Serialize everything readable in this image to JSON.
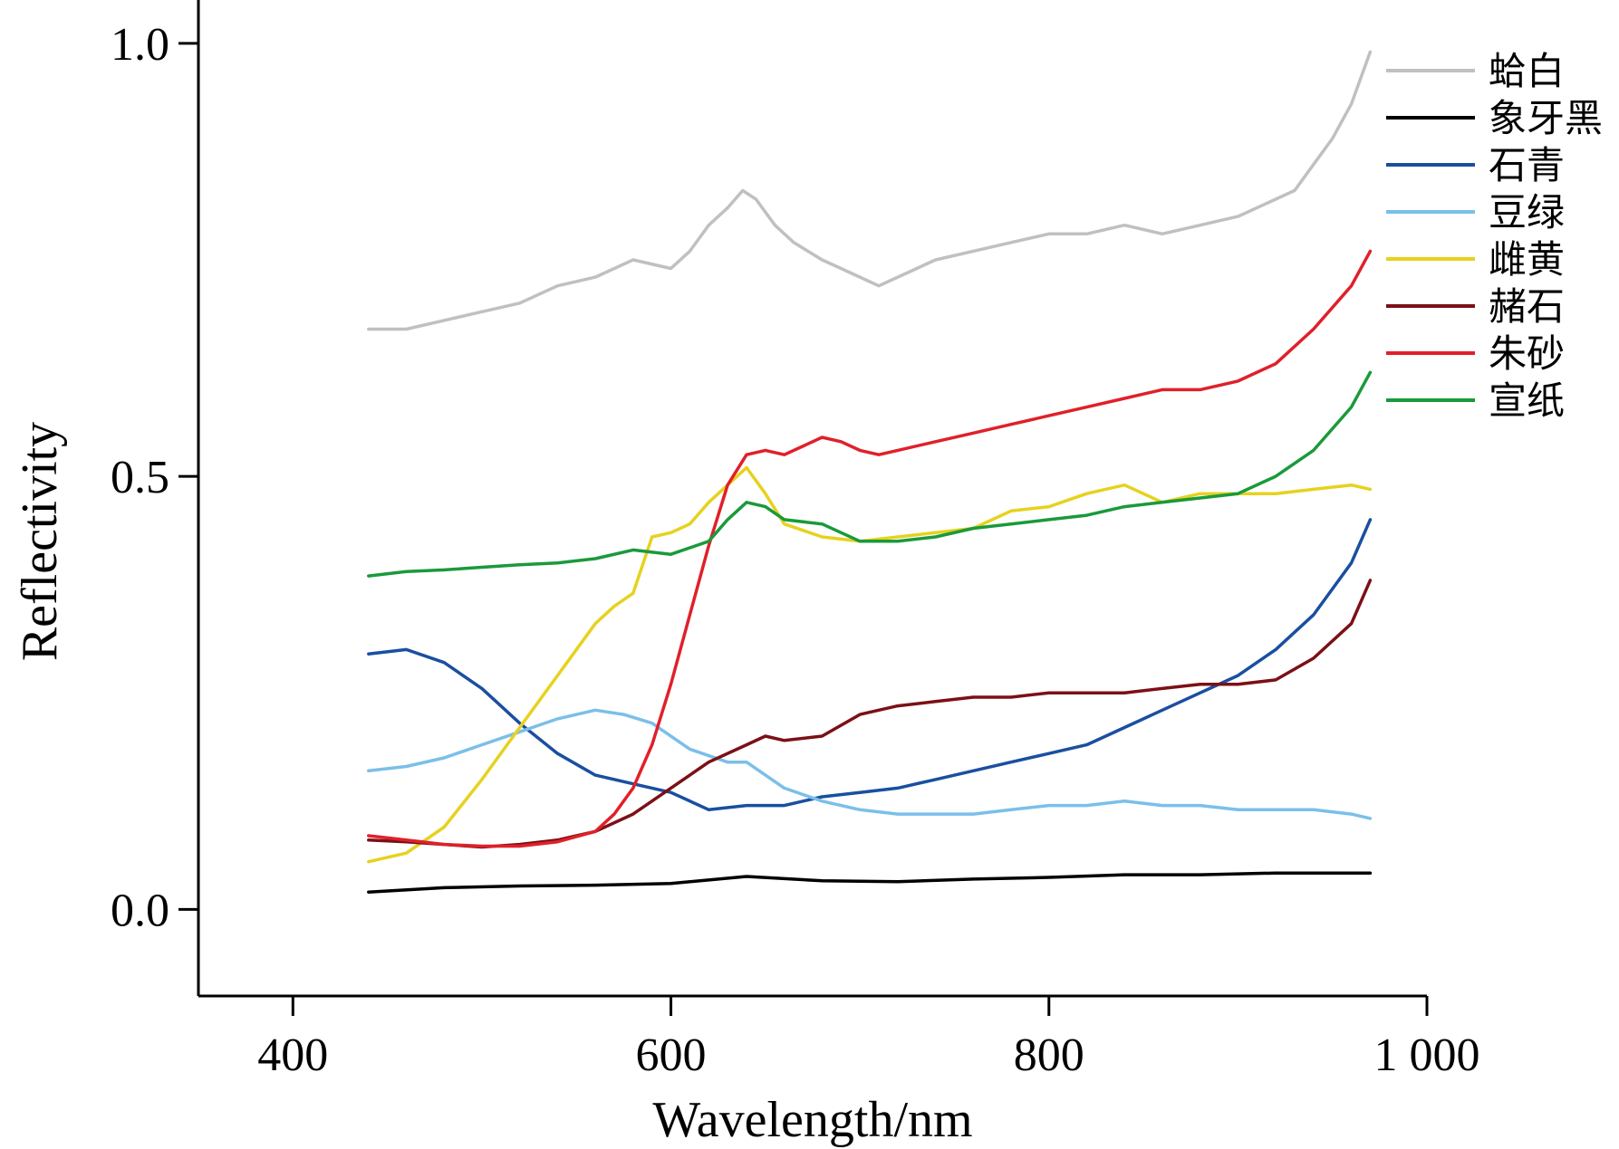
{
  "chart_data": {
    "type": "line",
    "xlabel": "Wavelength/nm",
    "ylabel": "Reflectivity",
    "xlim": [
      350,
      1000
    ],
    "ylim": [
      -0.1,
      1.05
    ],
    "xticks": [
      400,
      600,
      800,
      1000
    ],
    "xtick_labels": [
      "400",
      "600",
      "800",
      "1 000"
    ],
    "yticks": [
      0.0,
      0.5,
      1.0
    ],
    "ytick_labels": [
      "0.0",
      "0.5",
      "1.0"
    ],
    "grid": false,
    "legend_position": "top-right",
    "series": [
      {
        "name": "蛤白",
        "color": "#c0c0c0",
        "x": [
          440,
          460,
          480,
          500,
          520,
          540,
          560,
          580,
          600,
          610,
          620,
          630,
          638,
          645,
          655,
          665,
          680,
          690,
          700,
          710,
          720,
          740,
          760,
          780,
          800,
          820,
          840,
          860,
          880,
          900,
          920,
          930,
          940,
          950,
          960,
          970
        ],
        "y": [
          0.67,
          0.67,
          0.68,
          0.69,
          0.7,
          0.72,
          0.73,
          0.75,
          0.74,
          0.76,
          0.79,
          0.81,
          0.83,
          0.82,
          0.79,
          0.77,
          0.75,
          0.74,
          0.73,
          0.72,
          0.73,
          0.75,
          0.76,
          0.77,
          0.78,
          0.78,
          0.79,
          0.78,
          0.79,
          0.8,
          0.82,
          0.83,
          0.86,
          0.89,
          0.93,
          0.99
        ]
      },
      {
        "name": "象牙黑",
        "color": "#000000",
        "x": [
          440,
          480,
          520,
          560,
          600,
          640,
          680,
          720,
          760,
          800,
          840,
          880,
          920,
          970
        ],
        "y": [
          0.02,
          0.025,
          0.027,
          0.028,
          0.03,
          0.038,
          0.033,
          0.032,
          0.035,
          0.037,
          0.04,
          0.04,
          0.042,
          0.042
        ]
      },
      {
        "name": "石青",
        "color": "#1a4fa0",
        "x": [
          440,
          460,
          480,
          500,
          520,
          540,
          560,
          580,
          600,
          620,
          640,
          660,
          680,
          700,
          720,
          740,
          760,
          780,
          800,
          820,
          840,
          860,
          880,
          900,
          920,
          940,
          960,
          970
        ],
        "y": [
          0.295,
          0.3,
          0.285,
          0.255,
          0.215,
          0.18,
          0.155,
          0.145,
          0.135,
          0.115,
          0.12,
          0.12,
          0.13,
          0.135,
          0.14,
          0.15,
          0.16,
          0.17,
          0.18,
          0.19,
          0.21,
          0.23,
          0.25,
          0.27,
          0.3,
          0.34,
          0.4,
          0.45
        ]
      },
      {
        "name": "豆绿",
        "color": "#7bbfe9",
        "x": [
          440,
          460,
          480,
          500,
          520,
          540,
          560,
          575,
          590,
          610,
          630,
          640,
          660,
          680,
          700,
          720,
          740,
          760,
          780,
          800,
          820,
          840,
          860,
          880,
          900,
          920,
          940,
          960,
          970
        ],
        "y": [
          0.16,
          0.165,
          0.175,
          0.19,
          0.205,
          0.22,
          0.23,
          0.225,
          0.215,
          0.185,
          0.17,
          0.17,
          0.14,
          0.125,
          0.115,
          0.11,
          0.11,
          0.11,
          0.115,
          0.12,
          0.12,
          0.125,
          0.12,
          0.12,
          0.115,
          0.115,
          0.115,
          0.11,
          0.105
        ]
      },
      {
        "name": "雌黄",
        "color": "#e6d21e",
        "x": [
          440,
          460,
          480,
          500,
          520,
          540,
          560,
          570,
          580,
          590,
          600,
          610,
          620,
          630,
          640,
          650,
          660,
          680,
          700,
          720,
          740,
          760,
          780,
          800,
          820,
          840,
          860,
          880,
          900,
          920,
          940,
          960,
          970
        ],
        "y": [
          0.055,
          0.065,
          0.095,
          0.15,
          0.21,
          0.27,
          0.33,
          0.35,
          0.365,
          0.43,
          0.435,
          0.445,
          0.47,
          0.49,
          0.51,
          0.48,
          0.445,
          0.43,
          0.425,
          0.43,
          0.435,
          0.44,
          0.46,
          0.465,
          0.48,
          0.49,
          0.47,
          0.48,
          0.48,
          0.48,
          0.485,
          0.49,
          0.485
        ]
      },
      {
        "name": "赭石",
        "color": "#7b1016",
        "x": [
          440,
          460,
          480,
          500,
          520,
          540,
          560,
          580,
          600,
          620,
          640,
          650,
          660,
          680,
          700,
          720,
          740,
          760,
          780,
          800,
          820,
          840,
          860,
          880,
          900,
          920,
          940,
          960,
          970
        ],
        "y": [
          0.08,
          0.078,
          0.075,
          0.072,
          0.075,
          0.08,
          0.09,
          0.11,
          0.14,
          0.17,
          0.19,
          0.2,
          0.195,
          0.2,
          0.225,
          0.235,
          0.24,
          0.245,
          0.245,
          0.25,
          0.25,
          0.25,
          0.255,
          0.26,
          0.26,
          0.265,
          0.29,
          0.33,
          0.38
        ]
      },
      {
        "name": "朱砂",
        "color": "#e0202a",
        "x": [
          440,
          460,
          480,
          500,
          520,
          540,
          560,
          570,
          580,
          590,
          600,
          610,
          620,
          630,
          640,
          650,
          660,
          670,
          680,
          690,
          700,
          710,
          720,
          740,
          760,
          780,
          800,
          820,
          840,
          860,
          880,
          900,
          920,
          940,
          960,
          970
        ],
        "y": [
          0.085,
          0.08,
          0.075,
          0.073,
          0.073,
          0.078,
          0.09,
          0.11,
          0.14,
          0.19,
          0.26,
          0.34,
          0.42,
          0.49,
          0.525,
          0.53,
          0.525,
          0.535,
          0.545,
          0.54,
          0.53,
          0.525,
          0.53,
          0.54,
          0.55,
          0.56,
          0.57,
          0.58,
          0.59,
          0.6,
          0.6,
          0.61,
          0.63,
          0.67,
          0.72,
          0.76
        ]
      },
      {
        "name": "宣纸",
        "color": "#1a9a3a",
        "x": [
          440,
          460,
          480,
          500,
          520,
          540,
          560,
          580,
          600,
          620,
          630,
          640,
          650,
          660,
          680,
          700,
          720,
          740,
          760,
          780,
          800,
          820,
          840,
          860,
          880,
          900,
          920,
          940,
          960,
          970
        ],
        "y": [
          0.385,
          0.39,
          0.392,
          0.395,
          0.398,
          0.4,
          0.405,
          0.415,
          0.41,
          0.425,
          0.45,
          0.47,
          0.465,
          0.45,
          0.445,
          0.425,
          0.425,
          0.43,
          0.44,
          0.445,
          0.45,
          0.455,
          0.465,
          0.47,
          0.475,
          0.48,
          0.5,
          0.53,
          0.58,
          0.62
        ]
      }
    ]
  }
}
